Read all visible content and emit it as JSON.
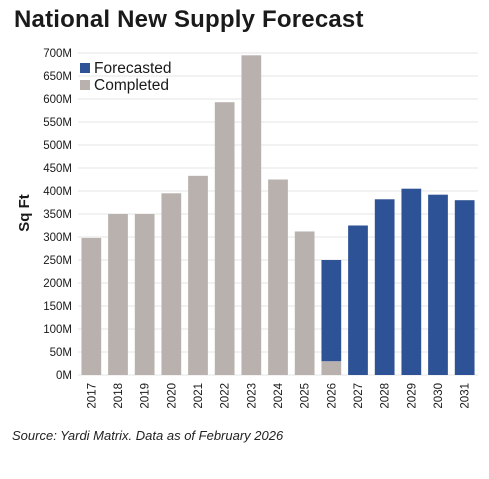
{
  "title": "National New Supply Forecast",
  "source": "Source: Yardi Matrix. Data as of February 2026",
  "colors": {
    "completed": "#b8b1ae",
    "forecasted": "#2d5295",
    "gridline": "#e6e6e6",
    "text": "#1a1a1a"
  },
  "chart_data": {
    "type": "bar",
    "stacked": true,
    "categories": [
      "2017",
      "2018",
      "2019",
      "2020",
      "2021",
      "2022",
      "2023",
      "2024",
      "2025",
      "2026",
      "2027",
      "2028",
      "2029",
      "2030",
      "2031"
    ],
    "series": [
      {
        "name": "Forecasted",
        "values": [
          0,
          0,
          0,
          0,
          0,
          0,
          0,
          0,
          0,
          220,
          325,
          382,
          405,
          392,
          380
        ]
      },
      {
        "name": "Completed",
        "values": [
          298,
          350,
          350,
          395,
          433,
          593,
          695,
          425,
          312,
          30,
          0,
          0,
          0,
          0,
          0
        ]
      }
    ],
    "y_ticks": [
      "0M",
      "50M",
      "100M",
      "150M",
      "200M",
      "250M",
      "300M",
      "350M",
      "400M",
      "450M",
      "500M",
      "550M",
      "600M",
      "650M",
      "700M"
    ],
    "ylabel": "Sq Ft",
    "xlabel": "",
    "ylim": [
      0,
      700
    ],
    "grid": true,
    "legend": "top-left"
  }
}
